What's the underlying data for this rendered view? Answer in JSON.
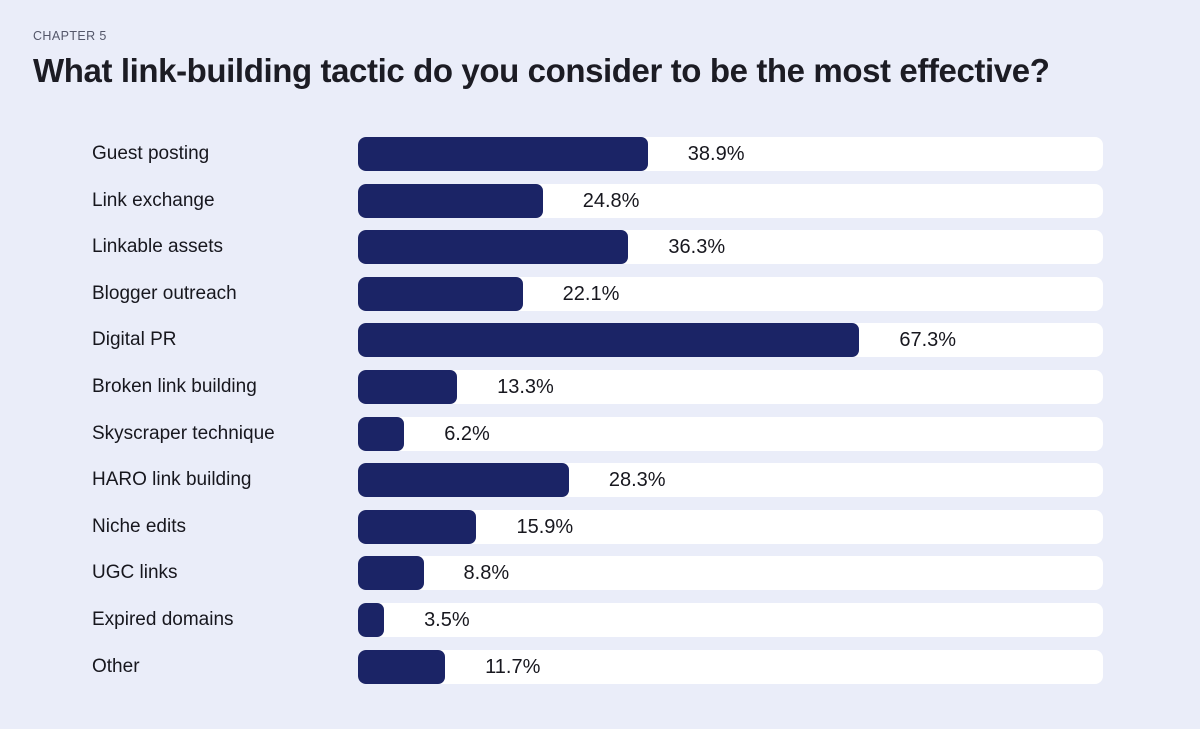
{
  "page": {
    "kicker": "CHAPTER 5",
    "title": "What link-building tactic do you consider to be the most effective?"
  },
  "colors": {
    "background": "#EAEDF9",
    "track": "#FFFFFF",
    "bar": "#1B2466",
    "title_text": "#1C1C24",
    "kicker_text": "#54576A",
    "label_text": "#17171E"
  },
  "chart_data": {
    "type": "bar",
    "orientation": "horizontal",
    "title": "What link-building tactic do you consider to be the most effective?",
    "categories": [
      "Guest posting",
      "Link exchange",
      "Linkable assets",
      "Blogger outreach",
      "Digital PR",
      "Broken link building",
      "Skyscraper technique",
      "HARO link building",
      "Niche edits",
      "UGC links",
      "Expired domains",
      "Other"
    ],
    "values": [
      38.9,
      24.8,
      36.3,
      22.1,
      67.3,
      13.3,
      6.2,
      28.3,
      15.9,
      8.8,
      3.5,
      11.7
    ],
    "value_labels": [
      "38.9%",
      "24.8%",
      "36.3%",
      "22.1%",
      "67.3%",
      "13.3%",
      "6.2%",
      "28.3%",
      "15.9%",
      "8.8%",
      "3.5%",
      "11.7%"
    ],
    "xlim": [
      0,
      100
    ],
    "grid": false,
    "legend": false
  }
}
